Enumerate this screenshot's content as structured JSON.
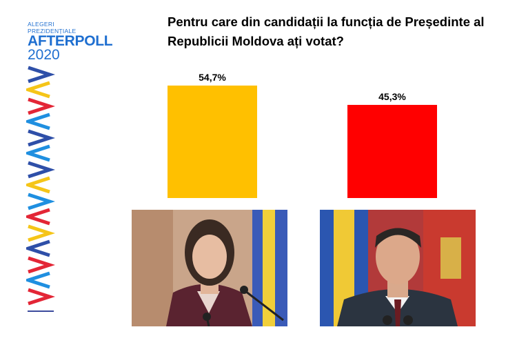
{
  "brand": {
    "line1": "ALEGERI",
    "line2": "PREZIDENȚIALE",
    "name": "AFTERPOLL",
    "year": "2020"
  },
  "colors": {
    "brand_blue": "#1f6fd0",
    "bar_yellow": "#ffc000",
    "bar_red": "#ff0000"
  },
  "photos": [
    "candidate-portrait-left",
    "candidate-portrait-right"
  ],
  "chart_data": {
    "type": "bar",
    "title": "Pentru care din candidații la funcția de Președinte al Republicii Moldova ați votat?",
    "categories": [
      "",
      ""
    ],
    "values": [
      54.7,
      45.3
    ],
    "labels": [
      "54,7%",
      "45,3%"
    ],
    "colors": [
      "#ffc000",
      "#ff0000"
    ],
    "ylim": [
      0,
      54.7
    ],
    "grid": false,
    "legend": "none"
  }
}
